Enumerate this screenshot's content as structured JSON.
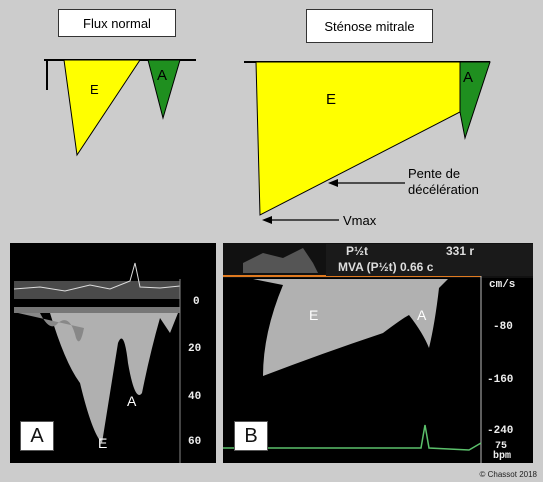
{
  "top": {
    "normal_title": "Flux normal",
    "stenosis_title": "Sténose mitrale",
    "wave_e": "E",
    "wave_a": "A",
    "slope_label_1": "Pente de",
    "slope_label_2": "décélération",
    "vmax_label": "Vmax"
  },
  "panel_a": {
    "label": "A",
    "wave_e": "E",
    "wave_a": "A",
    "ticks": [
      "0",
      "20",
      "40",
      "60"
    ]
  },
  "panel_b": {
    "label": "B",
    "wave_e": "E",
    "wave_a": "A",
    "header_1_label": "P½t",
    "header_1_value": "331 r",
    "header_2": "MVA (P½t) 0.66 c",
    "unit": "cm/s",
    "ticks": [
      "-80",
      "-160",
      "-240"
    ],
    "bottom_label_1": "75",
    "bottom_label_2": "bpm"
  },
  "copyright": "© Chassot 2018",
  "colors": {
    "e_wave": "#ffff00",
    "a_wave": "#1f8f1f",
    "ecg": "#5bc06b",
    "baseline": "#e07a20"
  }
}
